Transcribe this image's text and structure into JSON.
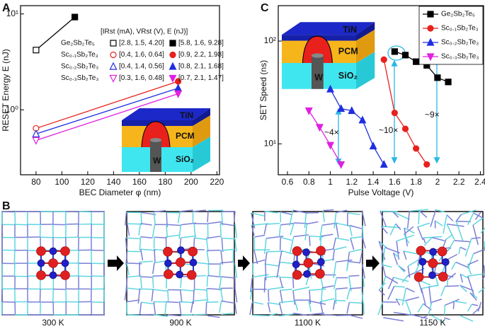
{
  "panel_labels": [
    "A",
    "B",
    "C"
  ],
  "snapshots": [
    "300 K",
    "900 K",
    "1100 K",
    "1150 K"
  ],
  "chart_data": [
    {
      "type": "line",
      "xlabel": "BEC Diameter φ (nm)",
      "ylabel": "RESET Energy E (nJ)",
      "xlim": [
        68,
        222
      ],
      "xticks": [
        80,
        100,
        120,
        140,
        160,
        180,
        200,
        220
      ],
      "ylim": [
        0.21,
        12.2
      ],
      "log_y": true,
      "yticks": [
        {
          "value": 1,
          "label": "10⁰"
        },
        {
          "value": 10,
          "label": "10¹"
        }
      ],
      "legend_header": "[IRst (mA), VRst (V), E (nJ)]",
      "inset_labels": [
        "TiN",
        "PCM",
        "SiO₂",
        "W"
      ],
      "series": [
        {
          "name": "Ge₂Sb₂Te₅",
          "color": "#000000",
          "marker": "square",
          "x": [
            80,
            110
          ],
          "values": [
            4.2,
            9.28
          ],
          "markers_filled": [
            false,
            true
          ],
          "point_labels": [
            "[2.8, 1.5, 4.20]",
            "[5.8, 1.6, 9.28]"
          ]
        },
        {
          "name": "Sc₀.₁Sb₂Te₃",
          "color": "#e8211d",
          "marker": "circle",
          "x": [
            80,
            190
          ],
          "values": [
            0.64,
            1.98
          ],
          "markers_filled": [
            false,
            true
          ],
          "point_labels": [
            "[0.4, 1.6, 0.64]",
            "[0.9, 2.2, 1.98]"
          ]
        },
        {
          "name": "Sc₀.₂Sb₂Te₃",
          "color": "#1f2ee0",
          "marker": "triangle-up",
          "x": [
            80,
            190
          ],
          "values": [
            0.56,
            1.68
          ],
          "markers_filled": [
            false,
            true
          ],
          "point_labels": [
            "[0.4, 1.4, 0.56]",
            "[0.8, 2.1, 1.68]"
          ]
        },
        {
          "name": "Sc₀.₃Sb₂Te₃",
          "color": "#e020e0",
          "marker": "triangle-down",
          "x": [
            80,
            190
          ],
          "values": [
            0.48,
            1.47
          ],
          "markers_filled": [
            false,
            true
          ],
          "point_labels": [
            "[0.3, 1.6, 0.48]",
            "[0.7, 2.1, 1.47]"
          ]
        }
      ]
    },
    {
      "type": "line",
      "xlabel": "Pulse Voltage (V)",
      "ylabel": "SET Speed (ns)",
      "xlim": [
        0.514,
        2.43
      ],
      "xticks": [
        0.6,
        0.8,
        1.0,
        1.2,
        1.4,
        1.6,
        1.8,
        2.0,
        2.2,
        2.4
      ],
      "ylim": [
        5,
        221
      ],
      "log_y": true,
      "yticks": [
        {
          "value": 10,
          "label": "10¹"
        },
        {
          "value": 100,
          "label": "10²"
        }
      ],
      "inset_labels": [
        "TiN",
        "PCM",
        "SiO₂",
        "W"
      ],
      "annotations": [
        "~4×",
        "~10×",
        "~9×"
      ],
      "series": [
        {
          "name": "Ge₂Sb₂Te₅",
          "color": "#000000",
          "marker": "square",
          "x": [
            1.6,
            1.7,
            1.8,
            1.9,
            2.0,
            2.1
          ],
          "values": [
            79,
            73,
            63,
            58,
            44,
            40
          ]
        },
        {
          "name": "Sc₀.₁Sb₂Te₃",
          "color": "#e8211d",
          "marker": "circle",
          "x": [
            1.5,
            1.6,
            1.7,
            1.8,
            1.9
          ],
          "values": [
            66,
            20,
            14,
            9,
            6.3
          ]
        },
        {
          "name": "Sc₀.₂Sb₂Te₃",
          "color": "#1f2ee0",
          "marker": "triangle-up",
          "x": [
            1.0,
            1.1,
            1.2,
            1.3,
            1.4,
            1.5
          ],
          "values": [
            34,
            22,
            21,
            17,
            9.5,
            6.3
          ]
        },
        {
          "name": "Sc₀.₃Sb₂Te₃",
          "color": "#e020e0",
          "marker": "triangle-down",
          "x": [
            0.8,
            0.9,
            1.0,
            1.1
          ],
          "values": [
            21,
            14.5,
            9.7,
            6.3
          ]
        }
      ]
    }
  ]
}
